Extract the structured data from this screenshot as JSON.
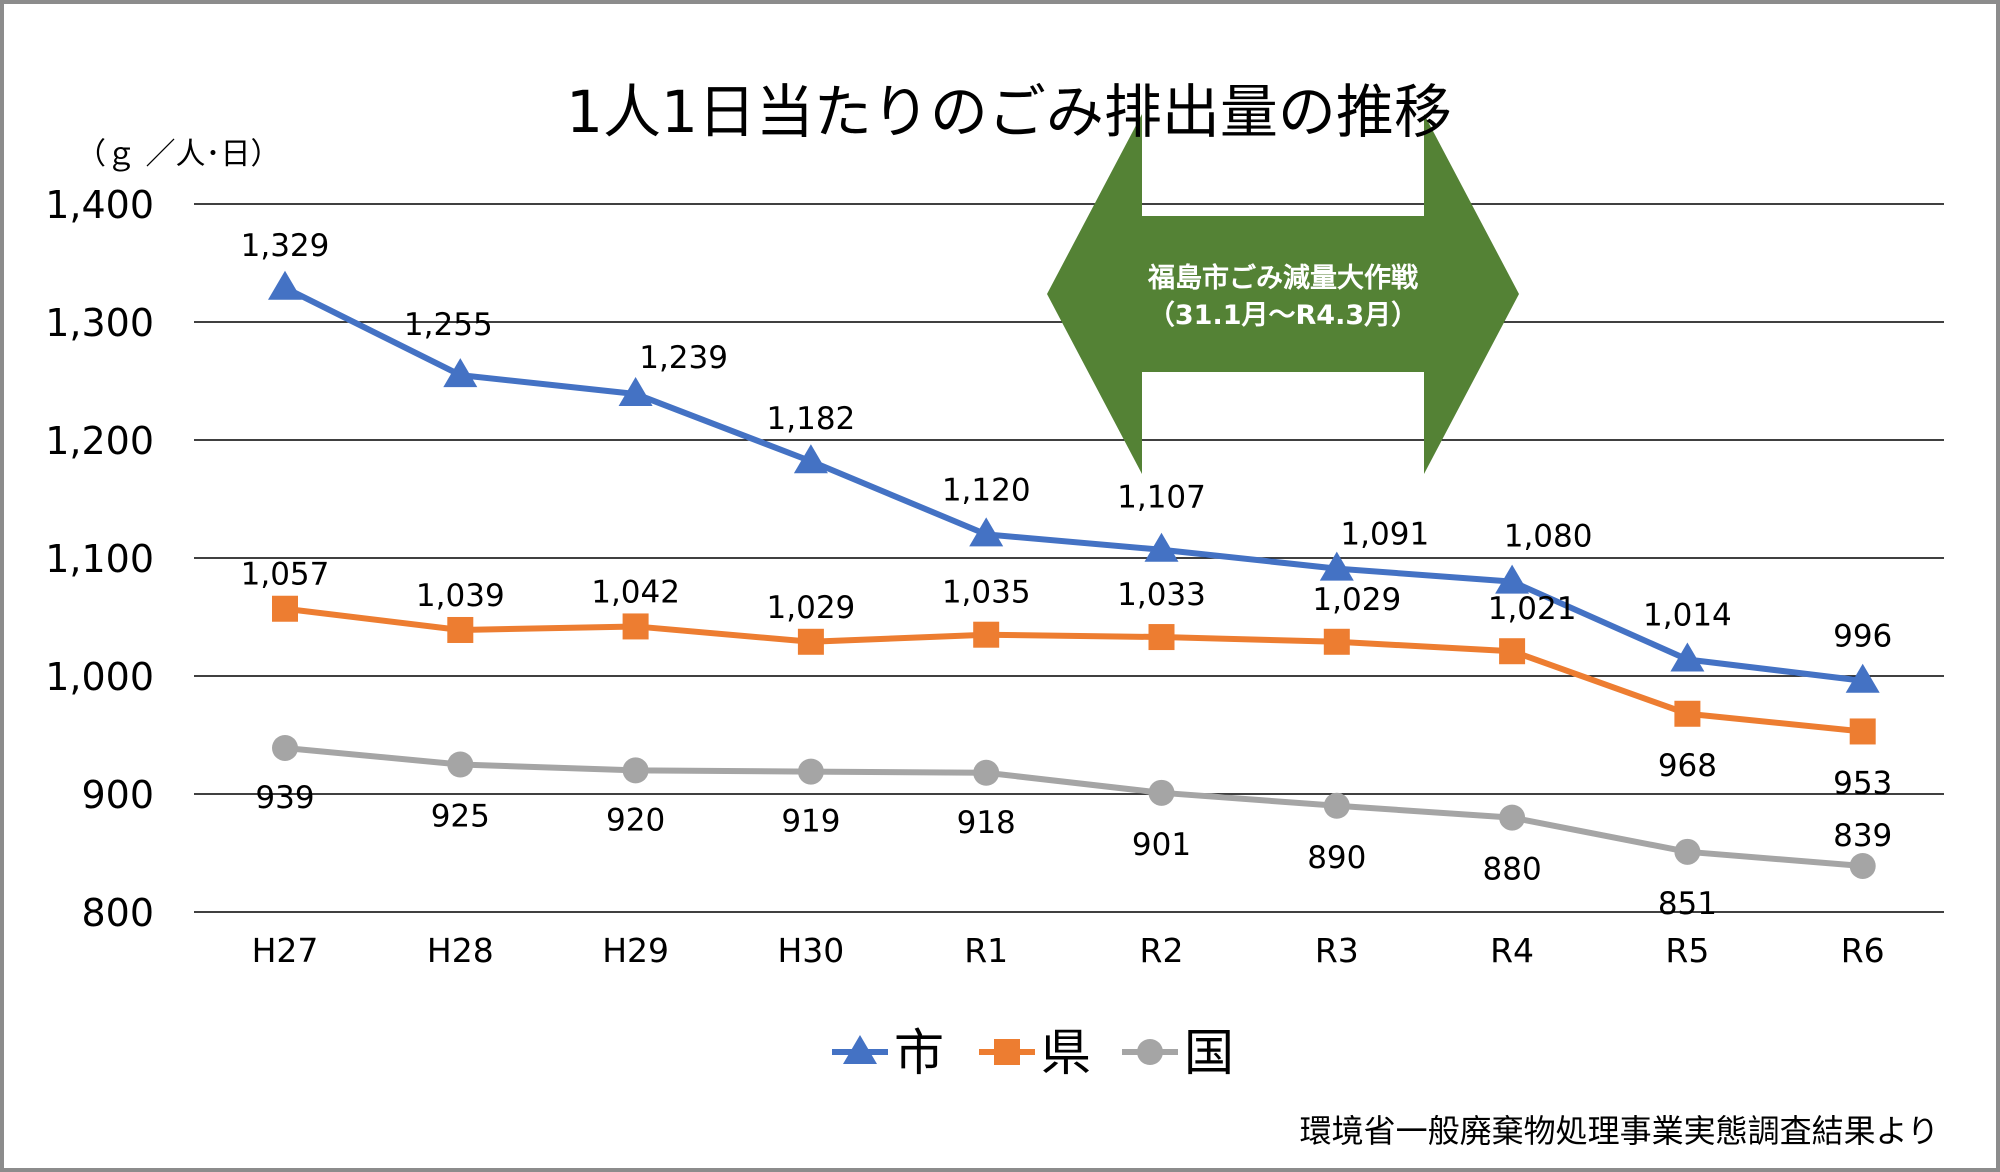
{
  "chart_data": {
    "type": "line",
    "title": "1人1日当たりのごみ排出量の推移",
    "unit_label": "（ｇ ／人･日）",
    "categories": [
      "H27",
      "H28",
      "H29",
      "H30",
      "R1",
      "R2",
      "R3",
      "R4",
      "R5",
      "R6"
    ],
    "ylim": [
      800,
      1400
    ],
    "yticks": [
      800,
      900,
      1000,
      1100,
      1200,
      1300,
      1400
    ],
    "ytick_labels": [
      "800",
      "900",
      "1,000",
      "1,100",
      "1,200",
      "1,300",
      "1,400"
    ],
    "grid": true,
    "legend_position": "bottom",
    "series": [
      {
        "name": "市",
        "color": "#4472c4",
        "marker": "triangle",
        "values": [
          1329,
          1255,
          1239,
          1182,
          1120,
          1107,
          1091,
          1080,
          1014,
          996
        ],
        "labels": [
          "1,329",
          "1,255",
          "1,239",
          "1,182",
          "1,120",
          "1,107",
          "1,091",
          "1,080",
          "1,014",
          "996"
        ]
      },
      {
        "name": "県",
        "color": "#ed7d31",
        "marker": "square",
        "values": [
          1057,
          1039,
          1042,
          1029,
          1035,
          1033,
          1029,
          1021,
          968,
          953
        ],
        "labels": [
          "1,057",
          "1,039",
          "1,042",
          "1,029",
          "1,035",
          "1,033",
          "1,029",
          "1,021",
          "968",
          "953"
        ]
      },
      {
        "name": "国",
        "color": "#a5a5a5",
        "marker": "circle",
        "values": [
          939,
          925,
          920,
          919,
          918,
          901,
          890,
          880,
          851,
          839
        ],
        "labels": [
          "939",
          "925",
          "920",
          "919",
          "918",
          "901",
          "890",
          "880",
          "851",
          "839"
        ]
      }
    ],
    "annotation": {
      "line1": "福島市ごみ減量大作戦",
      "line2": "（31.1月～R4.3月）",
      "color": "#548235"
    },
    "source": "環境省一般廃棄物処理事業実態調査結果より"
  }
}
